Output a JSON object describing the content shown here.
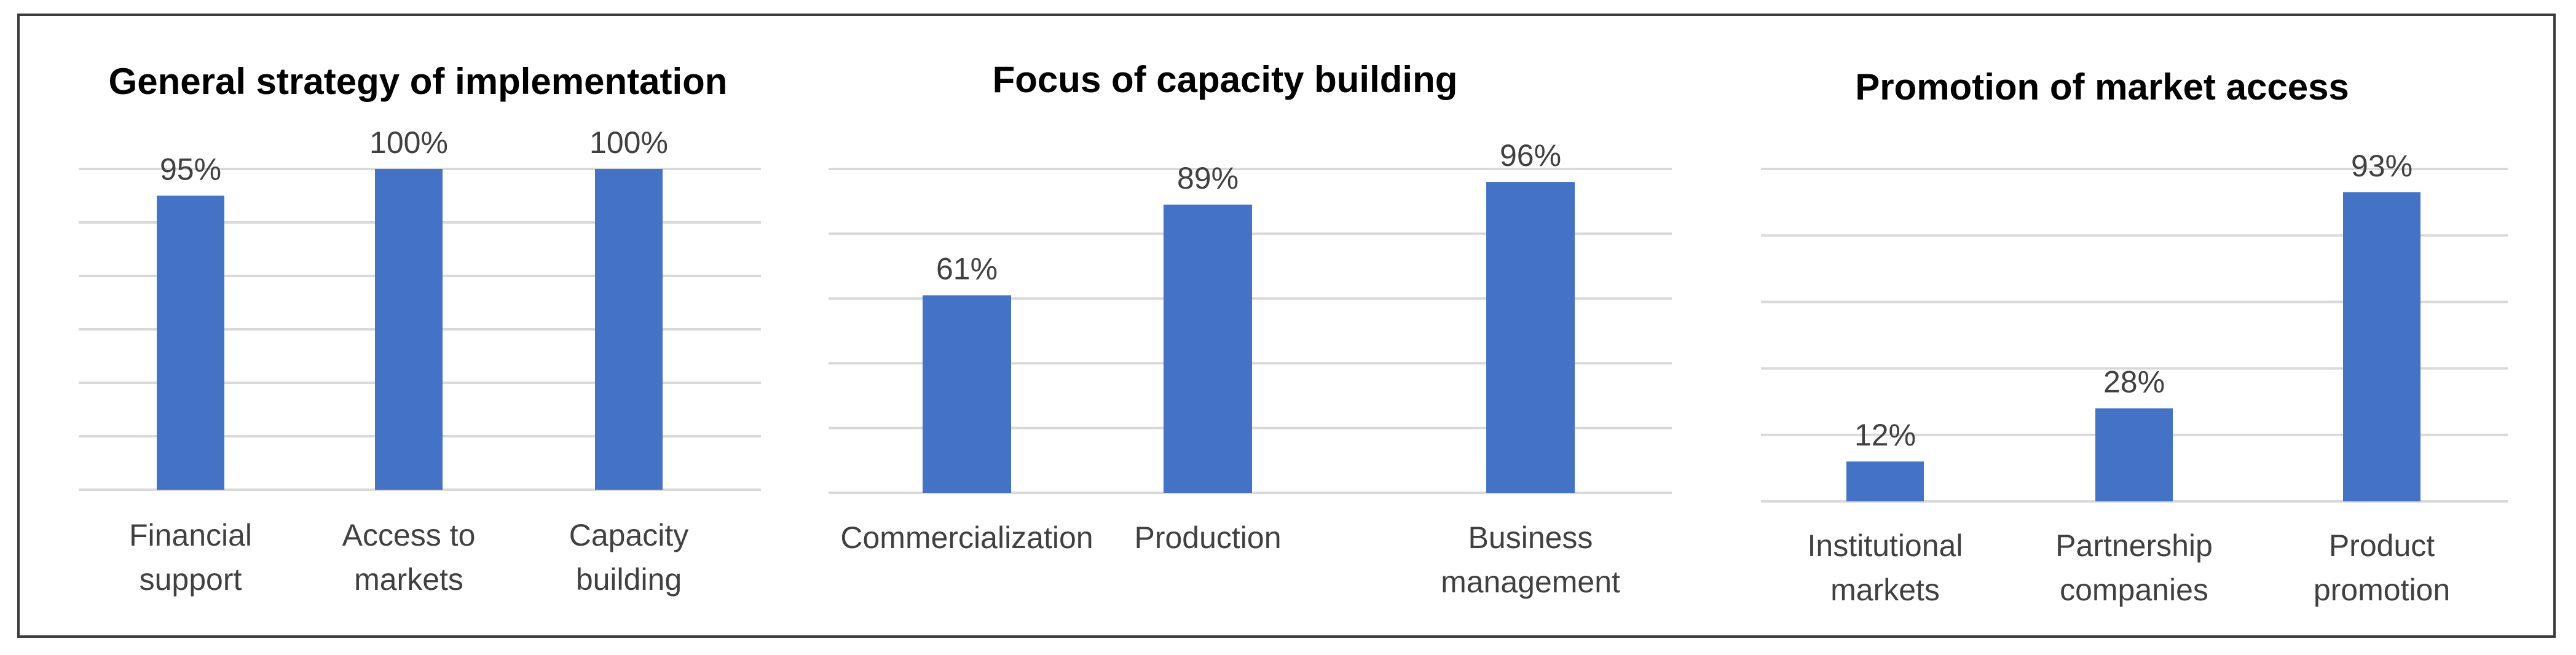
{
  "chart_data": [
    {
      "type": "bar",
      "title": "General strategy of implementation",
      "categories": [
        [
          "Financial",
          "support"
        ],
        [
          "Access to",
          "markets"
        ],
        [
          "Capacity",
          "building"
        ]
      ],
      "values": [
        95,
        100,
        100
      ],
      "value_labels": [
        "95%",
        "100%",
        "100%"
      ],
      "ylim": [
        40,
        100
      ],
      "gridlines": 7,
      "xlabel": "",
      "ylabel": "",
      "bar_color": "#4472C4"
    },
    {
      "type": "bar",
      "title": "Focus of capacity building",
      "categories": [
        [
          "Commercialization"
        ],
        [
          "Production"
        ],
        [
          "Business",
          "management"
        ]
      ],
      "values": [
        61,
        89,
        96
      ],
      "value_labels": [
        "61%",
        "89%",
        "96%"
      ],
      "ylim": [
        0,
        100
      ],
      "gridlines": 6,
      "xlabel": "",
      "ylabel": "",
      "bar_color": "#4472C4"
    },
    {
      "type": "bar",
      "title": "Promotion of market access",
      "categories": [
        [
          "Institutional",
          "markets"
        ],
        [
          "Partnership",
          "companies"
        ],
        [
          "Product",
          "promotion"
        ]
      ],
      "values": [
        12,
        28,
        93
      ],
      "value_labels": [
        "12%",
        "28%",
        "93%"
      ],
      "ylim": [
        0,
        100
      ],
      "gridlines": 6,
      "xlabel": "",
      "ylabel": "",
      "bar_color": "#4472C4"
    }
  ],
  "colors": {
    "bar": "#4472C4",
    "grid": "#d9d9d9",
    "text": "#404040",
    "border": "#3c3c3c"
  }
}
